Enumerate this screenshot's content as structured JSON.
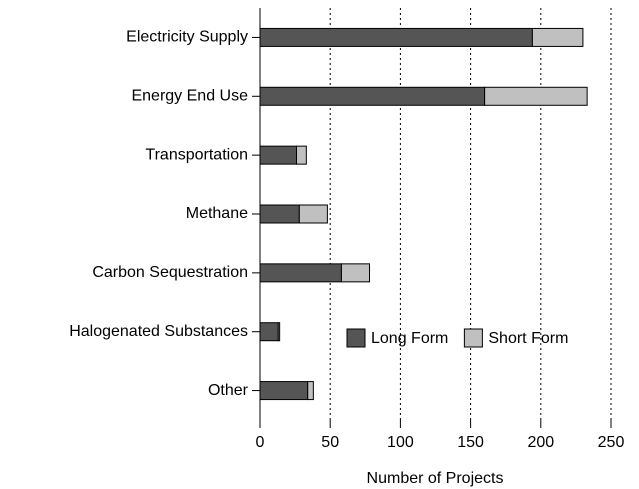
{
  "chart_data": {
    "type": "stacked_barh",
    "categories": [
      "Electricity Supply",
      "Energy End Use",
      "Transportation",
      "Methane",
      "Carbon Sequestration",
      "Halogenated Substances",
      "Other"
    ],
    "series": [
      {
        "name": "Long Form",
        "color": "#555555",
        "values": [
          194,
          160,
          26,
          28,
          58,
          13,
          34
        ]
      },
      {
        "name": "Short Form",
        "color": "#c0c0c0",
        "values": [
          36,
          73,
          7,
          20,
          20,
          1,
          4
        ]
      }
    ],
    "xlabel": "Number of Projects",
    "xlim": [
      0,
      250
    ],
    "xticks": [
      0,
      50,
      100,
      150,
      200,
      250
    ],
    "grid": true,
    "legend": "lower right"
  }
}
